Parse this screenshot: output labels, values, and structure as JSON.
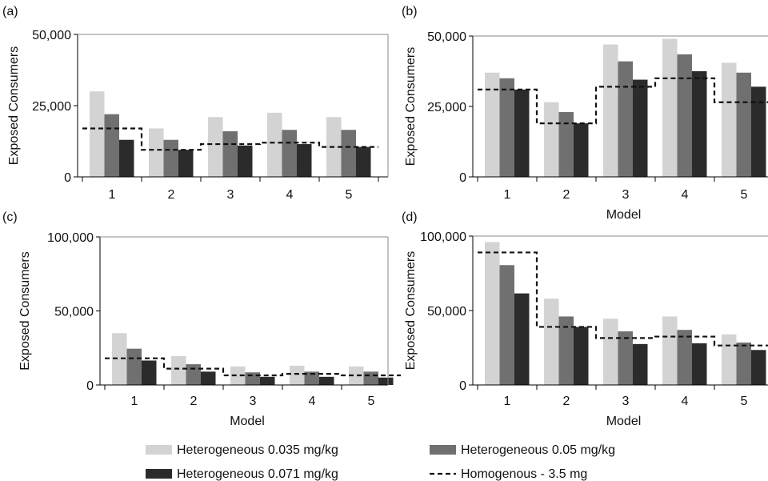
{
  "colors": {
    "s035": "#d3d3d3",
    "s050": "#707070",
    "s071": "#2b2b2b",
    "homogenous": "#111111",
    "axis": "#000000"
  },
  "legend": {
    "s035": "Heterogeneous 0.035 mg/kg",
    "s050": "Heterogeneous 0.05 mg/kg",
    "s071": "Heterogeneous 0.071 mg/kg",
    "homogenous": "Homogenous - 3.5 mg"
  },
  "chart_data": [
    {
      "panel": "(a)",
      "type": "bar",
      "xlabel": "",
      "ylabel": "Exposed Consumers",
      "categories": [
        "1",
        "2",
        "3",
        "4",
        "5"
      ],
      "ylim": [
        0,
        50000
      ],
      "yticks": [
        0,
        25000,
        50000
      ],
      "ytick_labels": [
        "0",
        "25,000",
        "50,000"
      ],
      "series": [
        {
          "name": "Heterogeneous 0.035 mg/kg",
          "values": [
            30000,
            17000,
            21000,
            22500,
            21000
          ]
        },
        {
          "name": "Heterogeneous 0.05 mg/kg",
          "values": [
            22000,
            13000,
            16000,
            16500,
            16500
          ]
        },
        {
          "name": "Heterogeneous 0.071 mg/kg",
          "values": [
            13000,
            9500,
            11000,
            11500,
            10500
          ]
        }
      ],
      "line": {
        "name": "Homogenous - 3.5 mg",
        "values": [
          17000,
          9500,
          11500,
          12000,
          10500
        ]
      }
    },
    {
      "panel": "(b)",
      "type": "bar",
      "xlabel": "Model",
      "ylabel": "Exposed Consumers",
      "categories": [
        "1",
        "2",
        "3",
        "4",
        "5"
      ],
      "ylim": [
        0,
        50000
      ],
      "yticks": [
        0,
        25000,
        50000
      ],
      "ytick_labels": [
        "0",
        "25,000",
        "50,000"
      ],
      "series": [
        {
          "name": "Heterogeneous 0.035 mg/kg",
          "values": [
            37000,
            26500,
            47000,
            49000,
            40500
          ]
        },
        {
          "name": "Heterogeneous 0.05 mg/kg",
          "values": [
            35000,
            23000,
            41000,
            43500,
            37000
          ]
        },
        {
          "name": "Heterogeneous 0.071 mg/kg",
          "values": [
            31000,
            19000,
            34500,
            37500,
            32000
          ]
        }
      ],
      "line": {
        "name": "Homogenous - 3.5 mg",
        "values": [
          31000,
          19000,
          32000,
          35000,
          26500
        ]
      }
    },
    {
      "panel": "(c)",
      "type": "bar",
      "xlabel": "Model",
      "ylabel": "Exposed Consumers",
      "categories": [
        "1",
        "2",
        "3",
        "4",
        "5"
      ],
      "ylim": [
        0,
        100000
      ],
      "yticks": [
        0,
        50000,
        100000
      ],
      "ytick_labels": [
        "0",
        "50,000",
        "100,000"
      ],
      "series": [
        {
          "name": "Heterogeneous 0.035 mg/kg",
          "values": [
            35000,
            19500,
            12500,
            13000,
            12500
          ]
        },
        {
          "name": "Heterogeneous 0.05 mg/kg",
          "values": [
            24500,
            14000,
            8500,
            9000,
            9000
          ]
        },
        {
          "name": "Heterogeneous 0.071 mg/kg",
          "values": [
            16500,
            9000,
            5500,
            5500,
            5000
          ]
        }
      ],
      "line": {
        "name": "Homogenous - 3.5 mg",
        "values": [
          18000,
          11000,
          6500,
          7500,
          6500
        ]
      }
    },
    {
      "panel": "(d)",
      "type": "bar",
      "xlabel": "Model",
      "ylabel": "Exposed Consumers",
      "categories": [
        "1",
        "2",
        "3",
        "4",
        "5"
      ],
      "ylim": [
        0,
        100000
      ],
      "yticks": [
        0,
        50000,
        100000
      ],
      "ytick_labels": [
        "0",
        "50,000",
        "100,000"
      ],
      "series": [
        {
          "name": "Heterogeneous 0.035 mg/kg",
          "values": [
            96000,
            58000,
            44500,
            46000,
            34000
          ]
        },
        {
          "name": "Heterogeneous 0.05 mg/kg",
          "values": [
            80500,
            46000,
            36000,
            37000,
            28500
          ]
        },
        {
          "name": "Heterogeneous 0.071 mg/kg",
          "values": [
            61500,
            39000,
            27500,
            28000,
            23500
          ]
        }
      ],
      "line": {
        "name": "Homogenous - 3.5 mg",
        "values": [
          89000,
          39000,
          31500,
          32500,
          26500
        ]
      }
    }
  ]
}
